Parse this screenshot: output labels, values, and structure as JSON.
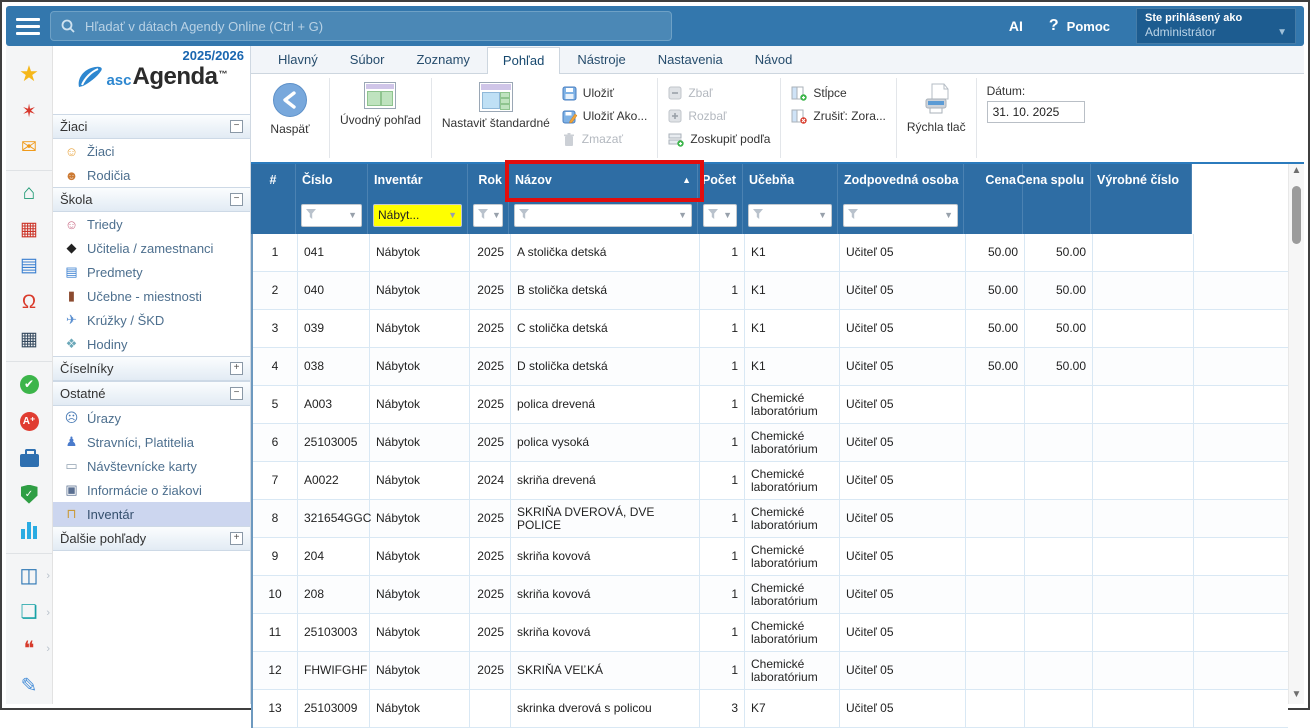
{
  "topbar": {
    "search_placeholder": "Hľadať v dátach Agendy Online (Ctrl + G)",
    "ai_label": "AI",
    "help_q": "?",
    "help_label": "Pomoc",
    "signed_in_as": "Ste prihlásený ako",
    "user_name": "Administrátor"
  },
  "icon_rail": [
    {
      "name": "favorites-icon",
      "type": "glyph",
      "glyph": "★",
      "color": "#f5b719",
      "size": 22
    },
    {
      "name": "wizard-icon",
      "type": "glyph",
      "glyph": "✶",
      "color": "#d7372c",
      "size": 18
    },
    {
      "name": "mail-icon",
      "type": "glyph",
      "glyph": "✉",
      "color": "#f09a1a",
      "size": 19
    },
    {
      "name": "divider",
      "type": "divider"
    },
    {
      "name": "home-icon",
      "type": "glyph",
      "glyph": "⌂",
      "color": "#1f9a74",
      "size": 21
    },
    {
      "name": "timetable-icon",
      "type": "glyph",
      "glyph": "▦",
      "color": "#cc3327",
      "size": 19
    },
    {
      "name": "notebook-icon",
      "type": "glyph",
      "glyph": "▤",
      "color": "#3a7fd0",
      "size": 19
    },
    {
      "name": "substitution-icon",
      "type": "glyph",
      "glyph": "Ω",
      "color": "#d93a2b",
      "size": 19
    },
    {
      "name": "calendar-icon",
      "type": "glyph",
      "glyph": "▦",
      "color": "#34495e",
      "size": 19
    },
    {
      "name": "divider",
      "type": "divider"
    },
    {
      "name": "attendance-check-icon",
      "type": "check",
      "glyph": "✔"
    },
    {
      "name": "grades-icon",
      "type": "aplus",
      "glyph": "A⁺"
    },
    {
      "name": "briefcase-icon",
      "type": "case"
    },
    {
      "name": "security-shield-icon",
      "type": "shield",
      "glyph": "✓"
    },
    {
      "name": "statistics-icon",
      "type": "chart"
    },
    {
      "name": "divider",
      "type": "divider"
    },
    {
      "name": "library-icon",
      "type": "glyph",
      "glyph": "◫",
      "color": "#2e77b5",
      "size": 20,
      "arrow": true
    },
    {
      "name": "documents-icon",
      "type": "glyph",
      "glyph": "❏",
      "color": "#17a2a6",
      "size": 19,
      "arrow": true
    },
    {
      "name": "messages-icon",
      "type": "glyph",
      "glyph": "❝",
      "color": "#d63a2a",
      "size": 20,
      "arrow": true
    },
    {
      "name": "asc-pen-icon",
      "type": "glyph",
      "glyph": "✎",
      "color": "#4a90d9",
      "size": 20
    }
  ],
  "sidebar": {
    "year": "2025/2026",
    "logo": {
      "asc": "asc",
      "agenda": "Agenda",
      "tm": "™"
    },
    "menu": [
      {
        "id": "ziaci-section",
        "type": "section",
        "label": "Žiaci",
        "state": "-"
      },
      {
        "id": "ziaci",
        "type": "item",
        "label": "Žiaci",
        "icon": "student-icon",
        "glyph": "☺",
        "color": "#e8a33d"
      },
      {
        "id": "rodicia",
        "type": "item",
        "label": "Rodičia",
        "icon": "parents-icon",
        "glyph": "☻",
        "color": "#cc7a33"
      },
      {
        "id": "skola-section",
        "type": "section",
        "label": "Škola",
        "state": "-"
      },
      {
        "id": "triedy",
        "type": "item",
        "label": "Triedy",
        "icon": "class-icon",
        "glyph": "☺",
        "color": "#c96a85"
      },
      {
        "id": "ucitelia",
        "type": "item",
        "label": "Učitelia / zamestnanci",
        "icon": "teacher-icon",
        "glyph": "◆",
        "color": "#222222"
      },
      {
        "id": "predmety",
        "type": "item",
        "label": "Predmety",
        "icon": "subjects-icon",
        "glyph": "▤",
        "color": "#3a7fd0"
      },
      {
        "id": "ucebne",
        "type": "item",
        "label": "Učebne - miestnosti",
        "icon": "rooms-icon",
        "glyph": "▮",
        "color": "#8b4a2f"
      },
      {
        "id": "kruzky",
        "type": "item",
        "label": "Krúžky / ŠKD",
        "icon": "clubs-icon",
        "glyph": "✈",
        "color": "#5a8fd0"
      },
      {
        "id": "hodiny",
        "type": "item",
        "label": "Hodiny",
        "icon": "lessons-icon",
        "glyph": "❖",
        "color": "#6aa7b8"
      },
      {
        "id": "ciselniky-section",
        "type": "section",
        "label": "Číselníky",
        "state": "+"
      },
      {
        "id": "ostatne-section",
        "type": "section",
        "label": "Ostatné",
        "state": "-"
      },
      {
        "id": "urazy",
        "type": "item",
        "label": "Úrazy",
        "icon": "injuries-icon",
        "glyph": "☹",
        "color": "#4a7bb5"
      },
      {
        "id": "stravnici",
        "type": "item",
        "label": "Stravníci, Platitelia",
        "icon": "diners-icon",
        "glyph": "♟",
        "color": "#4a7bcc"
      },
      {
        "id": "navstevnicke",
        "type": "item",
        "label": "Návštevnícke karty",
        "icon": "visitor-cards-icon",
        "glyph": "▭",
        "color": "#93a3b3"
      },
      {
        "id": "informacie",
        "type": "item",
        "label": "Informácie o žiakovi",
        "icon": "student-info-icon",
        "glyph": "▣",
        "color": "#5a6f91"
      },
      {
        "id": "inventar",
        "type": "item",
        "label": "Inventár",
        "icon": "inventory-icon",
        "glyph": "⊓",
        "color": "#c99a3a",
        "selected": true
      },
      {
        "id": "dalsie-section",
        "type": "section",
        "label": "Ďalšie pohľady",
        "state": "+"
      }
    ]
  },
  "tabs": [
    {
      "id": "hlavny",
      "label": "Hlavný",
      "active": false
    },
    {
      "id": "subor",
      "label": "Súbor",
      "active": false
    },
    {
      "id": "zoznamy",
      "label": "Zoznamy",
      "active": false
    },
    {
      "id": "pohlad",
      "label": "Pohľad",
      "active": true
    },
    {
      "id": "nastroje",
      "label": "Nástroje",
      "active": false
    },
    {
      "id": "nastavenia",
      "label": "Nastavenia",
      "active": false
    },
    {
      "id": "navod",
      "label": "Návod",
      "active": false
    }
  ],
  "ribbon": {
    "back": "Naspäť",
    "home_view": "Úvodný pohľad",
    "set_default": "Nastaviť štandardné",
    "save": "Uložiť",
    "save_as": "Uložiť Ako...",
    "delete": "Zmazať",
    "collapse": "Zbaľ",
    "expand": "Rozbaľ",
    "group_by": "Zoskupiť podľa",
    "columns": "Stĺpce",
    "cancel_sort": "Zrušiť: Zora...",
    "quick_print": "Rýchla tlač",
    "date_label": "Dátum:",
    "date_value": "31. 10. 2025"
  },
  "table": {
    "columns": [
      {
        "key": "n",
        "label": "#",
        "filter": "none"
      },
      {
        "key": "cislo",
        "label": "Číslo",
        "filter": "med"
      },
      {
        "key": "inventar",
        "label": "Inventár",
        "filter": "yellow",
        "filter_value": "Nábyt..."
      },
      {
        "key": "rok",
        "label": "Rok",
        "filter": "small"
      },
      {
        "key": "nazov",
        "label": "Názov",
        "filter": "wide",
        "sort": "asc"
      },
      {
        "key": "pocet",
        "label": "Počet",
        "filter": "small"
      },
      {
        "key": "ucebna",
        "label": "Učebňa",
        "filter": "med"
      },
      {
        "key": "osoba",
        "label": "Zodpovedná osoba",
        "filter": "med"
      },
      {
        "key": "cena",
        "label": "Cena",
        "filter": "none"
      },
      {
        "key": "cena_spolu",
        "label": "Cena spolu",
        "filter": "none"
      },
      {
        "key": "vyrobne",
        "label": "Výrobné číslo",
        "filter": "none"
      }
    ],
    "rows": [
      {
        "n": "1",
        "cislo": "041",
        "inventar": "Nábytok",
        "rok": "2025",
        "nazov": "A stolička detská",
        "pocet": "1",
        "ucebna": "K1",
        "osoba": "Učiteľ 05",
        "cena": "50.00",
        "cena_spolu": "50.00",
        "vyrobne": ""
      },
      {
        "n": "2",
        "cislo": "040",
        "inventar": "Nábytok",
        "rok": "2025",
        "nazov": "B stolička detská",
        "pocet": "1",
        "ucebna": "K1",
        "osoba": "Učiteľ 05",
        "cena": "50.00",
        "cena_spolu": "50.00",
        "vyrobne": ""
      },
      {
        "n": "3",
        "cislo": "039",
        "inventar": "Nábytok",
        "rok": "2025",
        "nazov": "C stolička detská",
        "pocet": "1",
        "ucebna": "K1",
        "osoba": "Učiteľ 05",
        "cena": "50.00",
        "cena_spolu": "50.00",
        "vyrobne": ""
      },
      {
        "n": "4",
        "cislo": "038",
        "inventar": "Nábytok",
        "rok": "2025",
        "nazov": "D stolička detská",
        "pocet": "1",
        "ucebna": "K1",
        "osoba": "Učiteľ 05",
        "cena": "50.00",
        "cena_spolu": "50.00",
        "vyrobne": ""
      },
      {
        "n": "5",
        "cislo": "A003",
        "inventar": "Nábytok",
        "rok": "2025",
        "nazov": "polica drevená",
        "pocet": "1",
        "ucebna": "Chemické laboratórium",
        "osoba": "Učiteľ 05",
        "cena": "",
        "cena_spolu": "",
        "vyrobne": ""
      },
      {
        "n": "6",
        "cislo": "25103005",
        "inventar": "Nábytok",
        "rok": "2025",
        "nazov": "polica vysoká",
        "pocet": "1",
        "ucebna": "Chemické laboratórium",
        "osoba": "Učiteľ 05",
        "cena": "",
        "cena_spolu": "",
        "vyrobne": ""
      },
      {
        "n": "7",
        "cislo": "A0022",
        "inventar": "Nábytok",
        "rok": "2024",
        "nazov": "skriňa drevená",
        "pocet": "1",
        "ucebna": "Chemické laboratórium",
        "osoba": "Učiteľ 05",
        "cena": "",
        "cena_spolu": "",
        "vyrobne": ""
      },
      {
        "n": "8",
        "cislo": "321654GGC",
        "inventar": "Nábytok",
        "rok": "2025",
        "nazov": "SKRIŇA DVEROVÁ, DVE POLICE",
        "pocet": "1",
        "ucebna": "Chemické laboratórium",
        "osoba": "Učiteľ 05",
        "cena": "",
        "cena_spolu": "",
        "vyrobne": ""
      },
      {
        "n": "9",
        "cislo": "204",
        "inventar": "Nábytok",
        "rok": "2025",
        "nazov": "skriňa kovová",
        "pocet": "1",
        "ucebna": "Chemické laboratórium",
        "osoba": "Učiteľ 05",
        "cena": "",
        "cena_spolu": "",
        "vyrobne": ""
      },
      {
        "n": "10",
        "cislo": "208",
        "inventar": "Nábytok",
        "rok": "2025",
        "nazov": "skriňa kovová",
        "pocet": "1",
        "ucebna": "Chemické laboratórium",
        "osoba": "Učiteľ 05",
        "cena": "",
        "cena_spolu": "",
        "vyrobne": ""
      },
      {
        "n": "11",
        "cislo": "25103003",
        "inventar": "Nábytok",
        "rok": "2025",
        "nazov": "skriňa kovová",
        "pocet": "1",
        "ucebna": "Chemické laboratórium",
        "osoba": "Učiteľ 05",
        "cena": "",
        "cena_spolu": "",
        "vyrobne": ""
      },
      {
        "n": "12",
        "cislo": "FHWIFGHF",
        "inventar": "Nábytok",
        "rok": "2025",
        "nazov": "SKRIŇA VEĽKÁ",
        "pocet": "1",
        "ucebna": "Chemické laboratórium",
        "osoba": "Učiteľ 05",
        "cena": "",
        "cena_spolu": "",
        "vyrobne": ""
      },
      {
        "n": "13",
        "cislo": "25103009",
        "inventar": "Nábytok",
        "rok": "",
        "nazov": "skrinka dverová s policou",
        "pocet": "3",
        "ucebna": "K7",
        "osoba": "Učiteľ 05",
        "cena": "",
        "cena_spolu": "",
        "vyrobne": ""
      }
    ]
  },
  "colors": {
    "topbar": "#3377ad",
    "table_header": "#2e6da4",
    "filter_highlight": "#ffff00",
    "annotation": "#e10d0d",
    "selected_item_bg": "#ccd6ef"
  }
}
